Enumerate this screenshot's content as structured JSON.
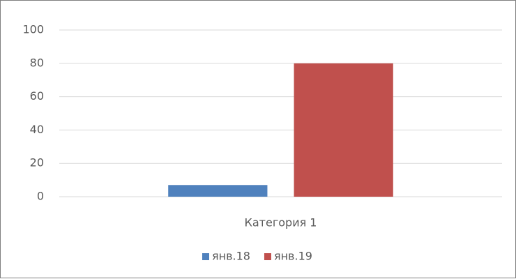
{
  "chart_data": {
    "type": "bar",
    "categories": [
      "Категория 1"
    ],
    "series": [
      {
        "name": "янв.18",
        "color": "#4f81bd",
        "values": [
          7
        ]
      },
      {
        "name": "янв.19",
        "color": "#c0504d",
        "values": [
          80
        ]
      }
    ],
    "ylim": [
      0,
      100
    ],
    "yticks": [
      0,
      20,
      40,
      60,
      80,
      100
    ],
    "grid": true,
    "legend": "bottom"
  }
}
